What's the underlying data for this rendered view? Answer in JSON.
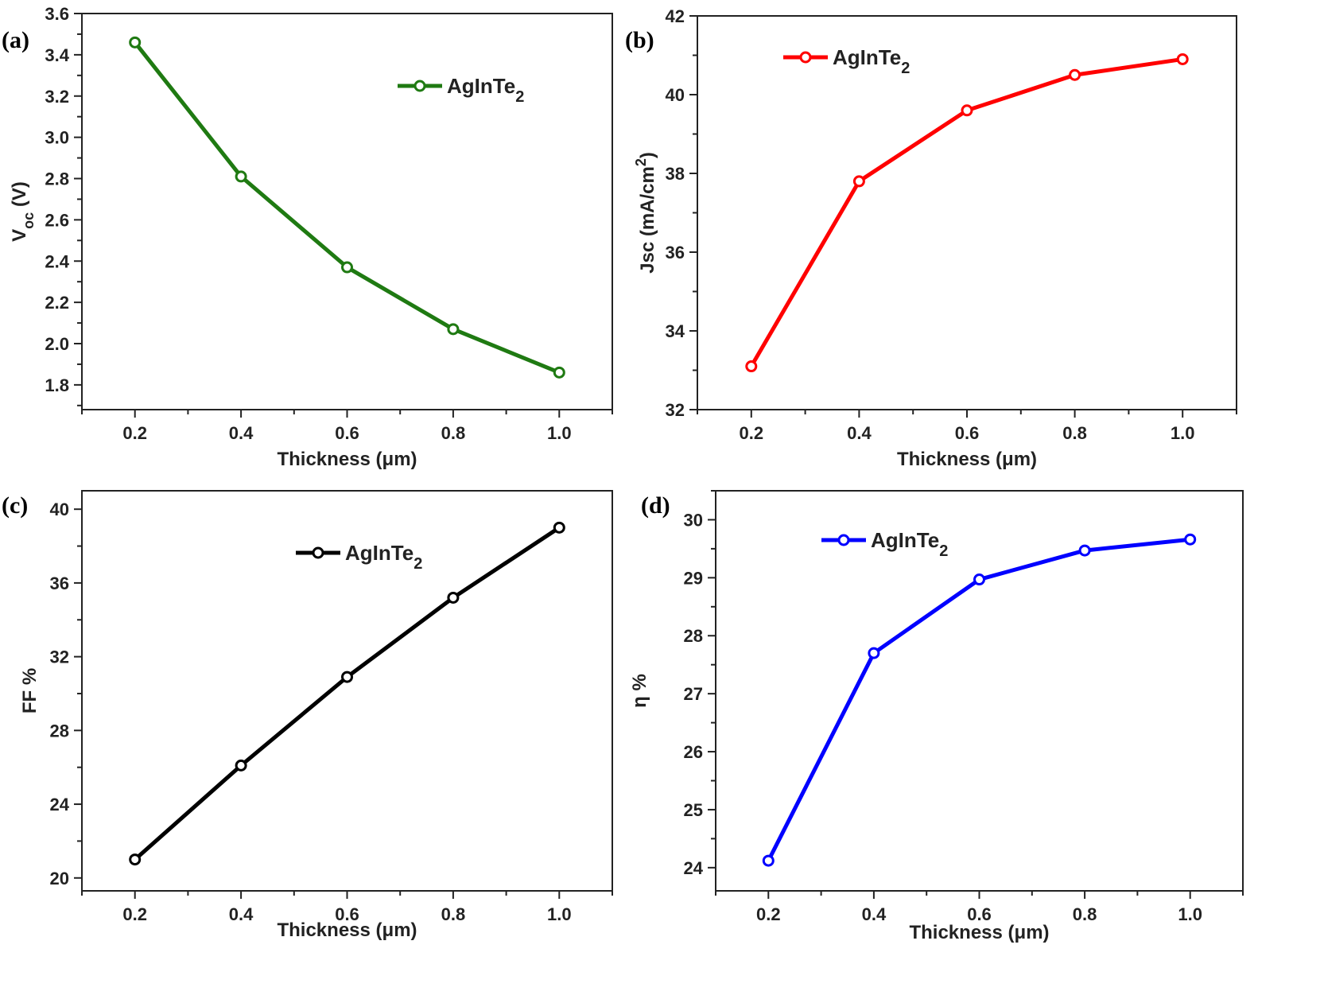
{
  "chart_data": [
    {
      "type": "line",
      "panel_label": "(a)",
      "xlabel": "Thickness (μm)",
      "ylabel_main": "V",
      "ylabel_sub": "oc",
      "ylabel_tail": " (V)",
      "legend": {
        "main": "AgInTe",
        "sub": "2",
        "placement": "top-right"
      },
      "color": "#1f7a12",
      "x": [
        0.2,
        0.4,
        0.6,
        0.8,
        1.0
      ],
      "y": [
        3.46,
        2.81,
        2.37,
        2.07,
        1.86
      ],
      "xlim": [
        0.1,
        1.1
      ],
      "ylim": [
        1.68,
        3.6
      ],
      "xticks": [
        "0.2",
        "0.4",
        "0.6",
        "0.8",
        "1.0"
      ],
      "yticks": [
        "1.8",
        "2.0",
        "2.2",
        "2.4",
        "2.6",
        "2.8",
        "3.0",
        "3.2",
        "3.4",
        "3.6"
      ]
    },
    {
      "type": "line",
      "panel_label": "(b)",
      "xlabel": "Thickness (μm)",
      "ylabel_main": "Jsc (mA/cm",
      "ylabel_sup": "2",
      "ylabel_tail": ")",
      "legend": {
        "main": "AgInTe",
        "sub": "2",
        "placement": "top-left"
      },
      "color": "#ff0000",
      "x": [
        0.2,
        0.4,
        0.6,
        0.8,
        1.0
      ],
      "y": [
        33.1,
        37.8,
        39.6,
        40.5,
        40.9
      ],
      "xlim": [
        0.1,
        1.1
      ],
      "ylim": [
        32,
        42
      ],
      "xticks": [
        "0.2",
        "0.4",
        "0.6",
        "0.8",
        "1.0"
      ],
      "yticks": [
        "32",
        "34",
        "36",
        "38",
        "40",
        "42"
      ]
    },
    {
      "type": "line",
      "panel_label": "(c)",
      "xlabel": "Thickness (μm)",
      "ylabel_main": "FF %",
      "legend": {
        "main": "AgInTe",
        "sub": "2",
        "placement": "top-center"
      },
      "color": "#000000",
      "x": [
        0.2,
        0.4,
        0.6,
        0.8,
        1.0
      ],
      "y": [
        21.0,
        26.1,
        30.9,
        35.2,
        39.0
      ],
      "xlim": [
        0.1,
        1.1
      ],
      "ylim": [
        19.3,
        41
      ],
      "xticks": [
        "0.2",
        "0.4",
        "0.6",
        "0.8",
        "1.0"
      ],
      "yticks": [
        "20",
        "24",
        "28",
        "32",
        "36",
        "40"
      ]
    },
    {
      "type": "line",
      "panel_label": "(d)",
      "xlabel": "Thickness (μm)",
      "ylabel_main": "η %",
      "legend": {
        "main": "AgInTe",
        "sub": "2",
        "placement": "top-center"
      },
      "color": "#0000ff",
      "x": [
        0.2,
        0.4,
        0.6,
        0.8,
        1.0
      ],
      "y": [
        24.12,
        27.7,
        28.97,
        29.47,
        29.66
      ],
      "xlim": [
        0.1,
        1.1
      ],
      "ylim": [
        23.6,
        30.5
      ],
      "xticks": [
        "0.2",
        "0.4",
        "0.6",
        "0.8",
        "1.0"
      ],
      "yticks": [
        "24",
        "25",
        "26",
        "27",
        "28",
        "29",
        "30"
      ]
    }
  ]
}
